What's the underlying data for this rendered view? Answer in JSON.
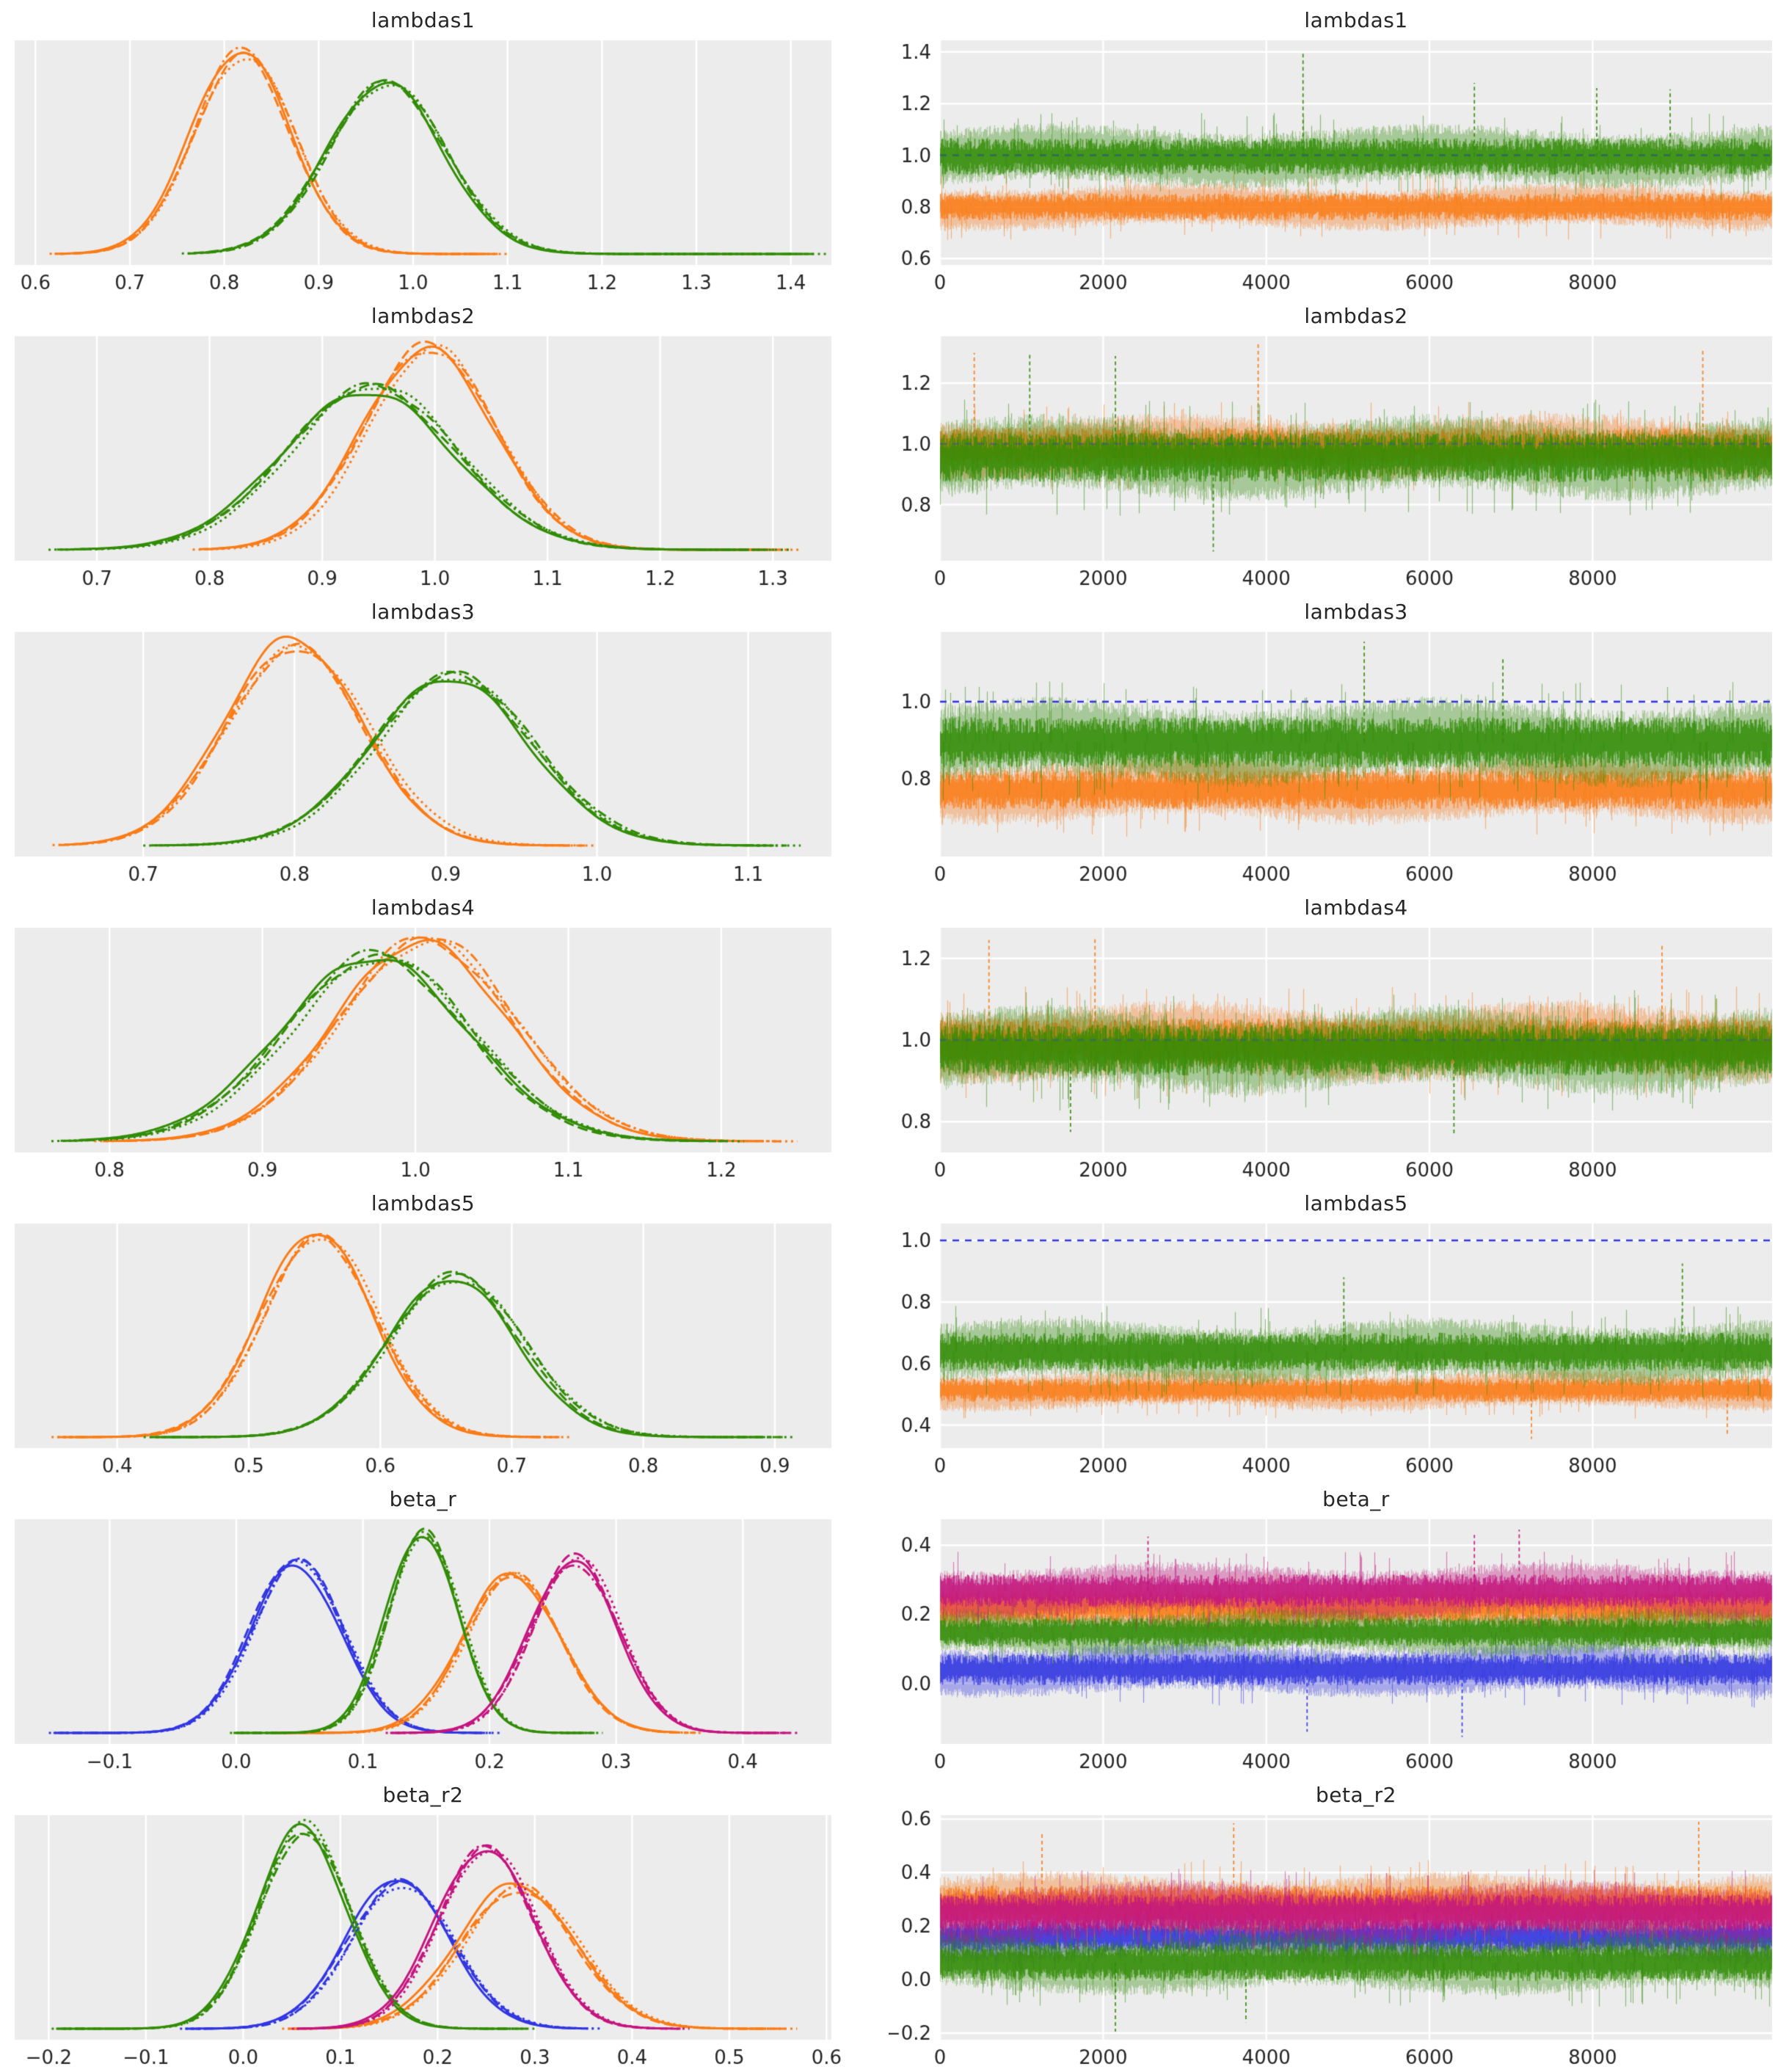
{
  "figure": {
    "background": "#ffffff",
    "panel_bg": "#ececec",
    "grid_color": "#ffffff",
    "text_color": "#262626",
    "n_chains": 4,
    "chain_linestyles": [
      "solid",
      "dashed",
      "dashdot",
      "dotted"
    ],
    "ref_line_color": "#3236e0"
  },
  "colors": {
    "blue": "#3236e0",
    "orange": "#fa7c17",
    "green": "#328c06",
    "magenta": "#c4157f"
  },
  "chart_data": [
    {
      "name": "lambdas1",
      "kde": {
        "type": "line",
        "subtype": "kde",
        "xlim": [
          0.578,
          1.443
        ],
        "xticks": [
          0.6,
          0.7,
          0.8,
          0.9,
          1.0,
          1.1,
          1.2,
          1.3,
          1.4
        ],
        "curves": [
          {
            "color": "orange",
            "mean": 0.82,
            "sd": 0.052,
            "height": 1.0,
            "range": [
              0.615,
              1.1
            ]
          },
          {
            "color": "green",
            "mean": 0.972,
            "sd": 0.062,
            "height": 0.87,
            "range": [
              0.755,
              1.44
            ]
          }
        ]
      },
      "trace": {
        "type": "line",
        "subtype": "trace",
        "xlim": [
          0,
          10200
        ],
        "xticks": [
          0,
          2000,
          4000,
          6000,
          8000
        ],
        "ylim": [
          0.575,
          1.445
        ],
        "yticks": [
          0.6,
          0.8,
          1.0,
          1.2,
          1.4
        ],
        "ref_line": 1.0,
        "ref_on_top": false,
        "series": [
          {
            "color": "orange",
            "center": 0.8,
            "spread": 0.058
          },
          {
            "color": "green",
            "center": 0.995,
            "spread": 0.078,
            "outliers": [
              {
                "x": 4450,
                "value": 1.4
              },
              {
                "x": 6550,
                "value": 1.28
              },
              {
                "x": 8050,
                "value": 1.26
              },
              {
                "x": 8950,
                "value": 1.255
              }
            ]
          }
        ]
      }
    },
    {
      "name": "lambdas2",
      "kde": {
        "type": "line",
        "subtype": "kde",
        "xlim": [
          0.627,
          1.352
        ],
        "xticks": [
          0.7,
          0.8,
          0.9,
          1.0,
          1.1,
          1.2,
          1.3
        ],
        "curves": [
          {
            "color": "orange",
            "mean": 0.995,
            "sd": 0.058,
            "height": 1.0,
            "range": [
              0.785,
              1.325
            ]
          },
          {
            "color": "green",
            "mean": 0.943,
            "sd": 0.075,
            "height": 0.8,
            "range": [
              0.657,
              1.315
            ]
          }
        ]
      },
      "trace": {
        "type": "line",
        "subtype": "trace",
        "xlim": [
          0,
          10200
        ],
        "xticks": [
          0,
          2000,
          4000,
          6000,
          8000
        ],
        "ylim": [
          0.615,
          1.355
        ],
        "yticks": [
          0.8,
          1.0,
          1.2
        ],
        "ref_line": 1.0,
        "ref_on_top": false,
        "series": [
          {
            "color": "orange",
            "center": 0.99,
            "spread": 0.068,
            "outliers": [
              {
                "x": 3900,
                "value": 1.33
              },
              {
                "x": 420,
                "value": 1.3
              },
              {
                "x": 9350,
                "value": 1.31
              }
            ]
          },
          {
            "color": "green",
            "center": 0.955,
            "spread": 0.088,
            "outliers": [
              {
                "x": 3350,
                "value": 0.645
              },
              {
                "x": 2150,
                "value": 1.29
              },
              {
                "x": 1100,
                "value": 1.3
              }
            ]
          }
        ]
      }
    },
    {
      "name": "lambdas3",
      "kde": {
        "type": "line",
        "subtype": "kde",
        "xlim": [
          0.615,
          1.155
        ],
        "xticks": [
          0.7,
          0.8,
          0.9,
          1.0,
          1.1
        ],
        "curves": [
          {
            "color": "orange",
            "mean": 0.8,
            "sd": 0.046,
            "height": 1.0,
            "range": [
              0.64,
              1.0
            ]
          },
          {
            "color": "green",
            "mean": 0.905,
            "sd": 0.052,
            "height": 0.85,
            "range": [
              0.7,
              1.135
            ]
          }
        ]
      },
      "trace": {
        "type": "line",
        "subtype": "trace",
        "xlim": [
          0,
          10200
        ],
        "xticks": [
          0,
          2000,
          4000,
          6000,
          8000
        ],
        "ylim": [
          0.6,
          1.18
        ],
        "yticks": [
          0.8,
          1.0
        ],
        "ref_line": 1.0,
        "ref_on_top": false,
        "series": [
          {
            "color": "orange",
            "center": 0.772,
            "spread": 0.055
          },
          {
            "color": "green",
            "center": 0.895,
            "spread": 0.072,
            "outliers": [
              {
                "x": 5200,
                "value": 1.155
              },
              {
                "x": 6900,
                "value": 1.11
              }
            ]
          }
        ]
      }
    },
    {
      "name": "lambdas4",
      "kde": {
        "type": "line",
        "subtype": "kde",
        "xlim": [
          0.738,
          1.272
        ],
        "xticks": [
          0.8,
          0.9,
          1.0,
          1.1,
          1.2
        ],
        "curves": [
          {
            "color": "orange",
            "mean": 1.007,
            "sd": 0.057,
            "height": 1.0,
            "range": [
              0.79,
              1.25
            ]
          },
          {
            "color": "green",
            "mean": 0.975,
            "sd": 0.06,
            "height": 0.92,
            "range": [
              0.762,
              1.215
            ]
          }
        ]
      },
      "trace": {
        "type": "line",
        "subtype": "trace",
        "xlim": [
          0,
          10200
        ],
        "xticks": [
          0,
          2000,
          4000,
          6000,
          8000
        ],
        "ylim": [
          0.725,
          1.275
        ],
        "yticks": [
          0.8,
          1.0,
          1.2
        ],
        "ref_line": 1.0,
        "ref_on_top": false,
        "series": [
          {
            "color": "orange",
            "center": 0.995,
            "spread": 0.063,
            "outliers": [
              {
                "x": 600,
                "value": 1.245
              },
              {
                "x": 1900,
                "value": 1.25
              },
              {
                "x": 8850,
                "value": 1.235
              }
            ]
          },
          {
            "color": "green",
            "center": 0.975,
            "spread": 0.068,
            "outliers": [
              {
                "x": 6300,
                "value": 0.765
              },
              {
                "x": 1600,
                "value": 0.775
              }
            ]
          }
        ]
      }
    },
    {
      "name": "lambdas5",
      "kde": {
        "type": "line",
        "subtype": "kde",
        "xlim": [
          0.322,
          0.943
        ],
        "xticks": [
          0.4,
          0.5,
          0.6,
          0.7,
          0.8,
          0.9
        ],
        "curves": [
          {
            "color": "orange",
            "mean": 0.553,
            "sd": 0.043,
            "height": 1.0,
            "range": [
              0.35,
              0.745
            ]
          },
          {
            "color": "green",
            "mean": 0.657,
            "sd": 0.05,
            "height": 0.8,
            "range": [
              0.42,
              0.915
            ]
          }
        ]
      },
      "trace": {
        "type": "line",
        "subtype": "trace",
        "xlim": [
          0,
          10200
        ],
        "xticks": [
          0,
          2000,
          4000,
          6000,
          8000
        ],
        "ylim": [
          0.325,
          1.055
        ],
        "yticks": [
          0.4,
          0.6,
          0.8,
          1.0
        ],
        "ref_line": 1.0,
        "ref_on_top": true,
        "series": [
          {
            "color": "orange",
            "center": 0.513,
            "spread": 0.042,
            "outliers": [
              {
                "x": 7250,
                "value": 0.355
              },
              {
                "x": 9650,
                "value": 0.37
              }
            ]
          },
          {
            "color": "green",
            "center": 0.638,
            "spread": 0.068,
            "outliers": [
              {
                "x": 9100,
                "value": 0.925
              },
              {
                "x": 4950,
                "value": 0.88
              }
            ]
          }
        ]
      }
    },
    {
      "name": "beta_r",
      "kde": {
        "type": "line",
        "subtype": "kde",
        "xlim": [
          -0.175,
          0.47
        ],
        "xticks": [
          -0.1,
          0.0,
          0.1,
          0.2,
          0.3,
          0.4
        ],
        "curves": [
          {
            "color": "blue",
            "mean": 0.048,
            "sd": 0.036,
            "height": 0.85,
            "range": [
              -0.148,
              0.21
            ]
          },
          {
            "color": "orange",
            "mean": 0.218,
            "sd": 0.038,
            "height": 0.77,
            "range": [
              0.03,
              0.37
            ]
          },
          {
            "color": "green",
            "mean": 0.148,
            "sd": 0.028,
            "height": 1.0,
            "range": [
              -0.005,
              0.29
            ]
          },
          {
            "color": "magenta",
            "mean": 0.268,
            "sd": 0.035,
            "height": 0.86,
            "range": [
              0.118,
              0.445
            ]
          }
        ]
      },
      "trace": {
        "type": "line",
        "subtype": "trace",
        "xlim": [
          0,
          10200
        ],
        "xticks": [
          0,
          2000,
          4000,
          6000,
          8000
        ],
        "ylim": [
          -0.175,
          0.475
        ],
        "yticks": [
          0.0,
          0.2,
          0.4
        ],
        "ref_line": null,
        "ref_on_top": false,
        "series": [
          {
            "color": "blue",
            "center": 0.04,
            "spread": 0.05,
            "outliers": [
              {
                "x": 6400,
                "value": -0.155
              },
              {
                "x": 4500,
                "value": -0.14
              }
            ]
          },
          {
            "color": "orange",
            "center": 0.218,
            "spread": 0.048
          },
          {
            "color": "green",
            "center": 0.148,
            "spread": 0.045
          },
          {
            "color": "magenta",
            "center": 0.268,
            "spread": 0.052,
            "outliers": [
              {
                "x": 7100,
                "value": 0.445
              },
              {
                "x": 6550,
                "value": 0.43
              },
              {
                "x": 2550,
                "value": 0.425
              }
            ]
          }
        ]
      }
    },
    {
      "name": "beta_r2",
      "kde": {
        "type": "line",
        "subtype": "kde",
        "xlim": [
          -0.235,
          0.605
        ],
        "xticks": [
          -0.2,
          -0.1,
          0.0,
          0.1,
          0.2,
          0.3,
          0.4,
          0.5,
          0.6
        ],
        "curves": [
          {
            "color": "blue",
            "mean": 0.162,
            "sd": 0.053,
            "height": 0.73,
            "range": [
              -0.065,
              0.37
            ]
          },
          {
            "color": "orange",
            "mean": 0.283,
            "sd": 0.06,
            "height": 0.7,
            "range": [
              0.04,
              0.57
            ]
          },
          {
            "color": "green",
            "mean": 0.063,
            "sd": 0.046,
            "height": 1.0,
            "range": [
              -0.197,
              0.3
            ]
          },
          {
            "color": "magenta",
            "mean": 0.25,
            "sd": 0.05,
            "height": 0.88,
            "range": [
              0.05,
              0.46
            ]
          }
        ]
      },
      "trace": {
        "type": "line",
        "subtype": "trace",
        "xlim": [
          0,
          10200
        ],
        "xticks": [
          0,
          2000,
          4000,
          6000,
          8000
        ],
        "ylim": [
          -0.225,
          0.615
        ],
        "yticks": [
          -0.2,
          0.0,
          0.2,
          0.4,
          0.6
        ],
        "ref_line": null,
        "ref_on_top": false,
        "series": [
          {
            "color": "blue",
            "center": 0.162,
            "spread": 0.065
          },
          {
            "color": "orange",
            "center": 0.283,
            "spread": 0.075,
            "outliers": [
              {
                "x": 3600,
                "value": 0.585
              },
              {
                "x": 9300,
                "value": 0.59
              },
              {
                "x": 1250,
                "value": 0.545
              }
            ]
          },
          {
            "color": "green",
            "center": 0.063,
            "spread": 0.075,
            "outliers": [
              {
                "x": 2150,
                "value": -0.195
              },
              {
                "x": 3750,
                "value": -0.16
              }
            ]
          },
          {
            "color": "magenta",
            "center": 0.25,
            "spread": 0.075
          }
        ]
      }
    }
  ]
}
